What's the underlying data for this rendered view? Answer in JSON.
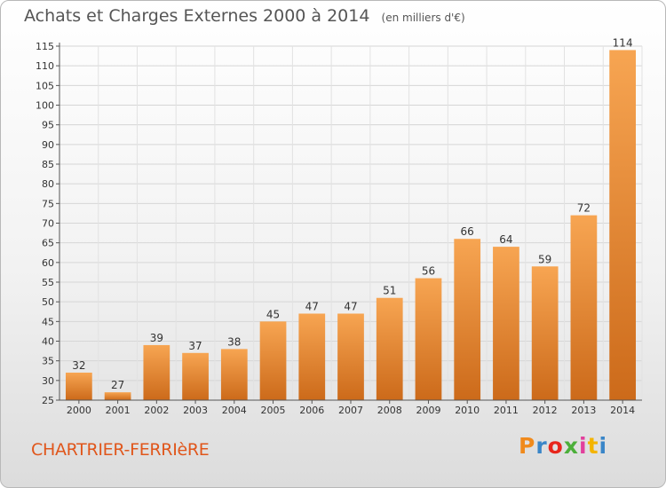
{
  "header": {
    "title": "Achats et Charges Externes 2000 à 2014",
    "unit": "(en milliers d'€)"
  },
  "footer": {
    "commune": "CHARTRIER-FERRIèRE",
    "logo_letters": [
      "P",
      "r",
      "o",
      "x",
      "i",
      "t",
      "i"
    ],
    "logo_colors": [
      "#f08a1c",
      "#3a86c8",
      "#e8261c",
      "#4caf3a",
      "#e23f9c",
      "#f4b400",
      "#3a86c8"
    ]
  },
  "chart_data": {
    "type": "bar",
    "title": "Achats et Charges Externes 2000 à 2014",
    "subtitle": "(en milliers d'€)",
    "categories": [
      "2000",
      "2001",
      "2002",
      "2003",
      "2004",
      "2005",
      "2006",
      "2007",
      "2008",
      "2009",
      "2010",
      "2011",
      "2012",
      "2013",
      "2014"
    ],
    "values": [
      32,
      27,
      39,
      37,
      38,
      45,
      47,
      47,
      51,
      56,
      66,
      64,
      59,
      72,
      114
    ],
    "ylim": [
      25,
      115
    ],
    "yticks": [
      25,
      30,
      35,
      40,
      45,
      50,
      55,
      60,
      65,
      70,
      75,
      80,
      85,
      90,
      95,
      100,
      105,
      110,
      115
    ],
    "grid": true,
    "bar_color_light": "#f7a552",
    "bar_color_dark": "#cc6a1a"
  }
}
